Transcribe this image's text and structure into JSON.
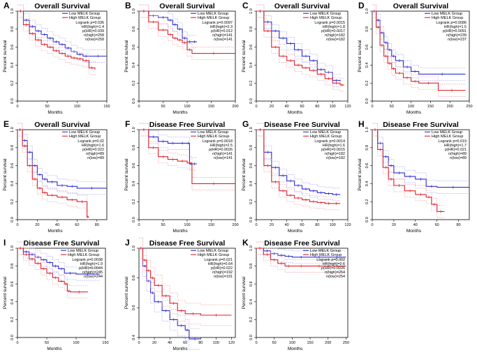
{
  "colors": {
    "low": "#2b2bd6",
    "high": "#e0202a",
    "low_ci": "#a8a8f0",
    "high_ci": "#f2a0a8",
    "frame": "#000000"
  },
  "chart_data": [
    {
      "letter": "A",
      "title": "Overall Survival",
      "type": "line",
      "xlabel": "Months",
      "ylabel": "Percent survival",
      "xlim": [
        0,
        150
      ],
      "xticks": [
        0,
        50,
        100,
        150
      ],
      "ylim": [
        0,
        1
      ],
      "yticks": [
        "0.0",
        "0.2",
        "0.4",
        "0.6",
        "0.8",
        "1.0"
      ],
      "legend": [
        "Low MELK Group",
        "High MELK Group"
      ],
      "stats": [
        "Logrank p=0.036",
        "HR(high)=1.4",
        "p(HR)=0.039",
        "n(high)=258",
        "n(low)=258"
      ],
      "series": [
        {
          "name": "Low MELK Group",
          "x": [
            0,
            10,
            20,
            30,
            40,
            50,
            60,
            70,
            80,
            90,
            100,
            110,
            120,
            150
          ],
          "y": [
            1.0,
            0.9,
            0.83,
            0.78,
            0.74,
            0.7,
            0.66,
            0.63,
            0.59,
            0.55,
            0.52,
            0.5,
            0.5,
            0.5
          ]
        },
        {
          "name": "High MELK Group",
          "x": [
            0,
            10,
            20,
            30,
            40,
            50,
            60,
            70,
            80,
            90,
            100,
            110,
            120,
            130
          ],
          "y": [
            1.0,
            0.85,
            0.75,
            0.68,
            0.63,
            0.6,
            0.56,
            0.53,
            0.5,
            0.48,
            0.47,
            0.45,
            0.37,
            0.35
          ]
        }
      ]
    },
    {
      "letter": "B",
      "title": "Overall Survival",
      "type": "line",
      "xlabel": "Months",
      "ylabel": "Percent survival",
      "xlim": [
        0,
        200
      ],
      "xticks": [
        0,
        50,
        100,
        150,
        200
      ],
      "ylim": [
        0,
        1
      ],
      "yticks": [
        "0.0",
        "0.2",
        "0.4",
        "0.6",
        "0.8",
        "1.0"
      ],
      "legend": [
        "Low MELK Group",
        "High MELK Group"
      ],
      "stats": [
        "Logrank p=0.0097",
        "HR(high)=2.3",
        "p(HR)=0.012",
        "n(high)=141",
        "n(low)=141"
      ],
      "series": [
        {
          "name": "Low MELK Group",
          "x": [
            0,
            20,
            40,
            60,
            70,
            80,
            90,
            100,
            110,
            120
          ],
          "y": [
            1.0,
            0.95,
            0.93,
            0.9,
            0.85,
            0.8,
            0.7,
            0.66,
            0.66,
            0.66
          ]
        },
        {
          "name": "High MELK Group",
          "x": [
            0,
            20,
            40,
            60,
            70,
            80,
            90,
            100,
            110,
            200
          ],
          "y": [
            1.0,
            0.88,
            0.79,
            0.74,
            0.7,
            0.68,
            0.65,
            0.57,
            0.53,
            0.53
          ]
        }
      ]
    },
    {
      "letter": "C",
      "title": "Overall Survival",
      "type": "line",
      "xlabel": "Months",
      "ylabel": "Percent survival",
      "xlim": [
        0,
        120
      ],
      "xticks": [
        0,
        20,
        40,
        60,
        80,
        100,
        120
      ],
      "ylim": [
        0,
        1
      ],
      "yticks": [
        "0.0",
        "0.2",
        "0.4",
        "0.6",
        "0.8",
        "1.0"
      ],
      "legend": [
        "Low MELK Group",
        "High MELK Group"
      ],
      "stats": [
        "Logrank p=0.0015",
        "HR(high)=1.8",
        "p(HR)=0.0017",
        "n(high)=182",
        "n(low)=182"
      ],
      "series": [
        {
          "name": "Low MELK Group",
          "x": [
            0,
            10,
            20,
            30,
            40,
            50,
            60,
            70,
            80,
            90,
            100,
            110
          ],
          "y": [
            1.0,
            0.88,
            0.78,
            0.7,
            0.64,
            0.57,
            0.5,
            0.45,
            0.35,
            0.32,
            0.23,
            0.22
          ]
        },
        {
          "name": "High MELK Group",
          "x": [
            0,
            10,
            20,
            30,
            40,
            50,
            60,
            70,
            80,
            90,
            100,
            110,
            115
          ],
          "y": [
            1.0,
            0.78,
            0.6,
            0.5,
            0.45,
            0.4,
            0.37,
            0.34,
            0.3,
            0.25,
            0.2,
            0.18,
            0.18
          ]
        }
      ]
    },
    {
      "letter": "D",
      "title": "Overall Survival",
      "type": "line",
      "xlabel": "Months",
      "ylabel": "Percent survival",
      "xlim": [
        0,
        250
      ],
      "xticks": [
        0,
        50,
        100,
        150,
        200,
        250
      ],
      "ylim": [
        0,
        1
      ],
      "yticks": [
        "0.0",
        "0.2",
        "0.4",
        "0.6",
        "0.8",
        "1.0"
      ],
      "legend": [
        "Low MELK Group",
        "High MELK Group"
      ],
      "stats": [
        "Logrank p=0.0086",
        "HR(high)=1.5",
        "p(HR)=0.0091",
        "n(high)=239",
        "n(low)=237"
      ],
      "series": [
        {
          "name": "Low MELK Group",
          "x": [
            0,
            10,
            20,
            30,
            40,
            50,
            60,
            80,
            100,
            120,
            240
          ],
          "y": [
            1.0,
            0.9,
            0.76,
            0.65,
            0.57,
            0.5,
            0.45,
            0.38,
            0.33,
            0.3,
            0.3
          ]
        },
        {
          "name": "High MELK Group",
          "x": [
            0,
            10,
            20,
            30,
            40,
            50,
            60,
            80,
            100,
            120,
            170,
            240
          ],
          "y": [
            1.0,
            0.82,
            0.62,
            0.5,
            0.42,
            0.36,
            0.31,
            0.26,
            0.22,
            0.2,
            0.12,
            0.12
          ]
        }
      ]
    },
    {
      "letter": "E",
      "title": "Overall Survival",
      "type": "line",
      "xlabel": "Months",
      "ylabel": "Percent survival",
      "xlim": [
        0,
        90
      ],
      "xticks": [
        0,
        20,
        40,
        60,
        80
      ],
      "ylim": [
        0,
        1
      ],
      "yticks": [
        "0.0",
        "0.2",
        "0.4",
        "0.6",
        "0.8",
        "1.0"
      ],
      "legend": [
        "Low MELK Group",
        "High MELK Group"
      ],
      "stats": [
        "Logrank p=0.02",
        "HR(high)=1.6",
        "p(HR)=0.022",
        "n(high)=89",
        "n(low)=89"
      ],
      "series": [
        {
          "name": "Low MELK Group",
          "x": [
            0,
            5,
            10,
            15,
            20,
            25,
            30,
            40,
            50,
            60,
            90
          ],
          "y": [
            1.0,
            0.88,
            0.75,
            0.6,
            0.5,
            0.45,
            0.42,
            0.38,
            0.37,
            0.35,
            0.35
          ]
        },
        {
          "name": "High MELK Group",
          "x": [
            0,
            5,
            10,
            15,
            20,
            25,
            30,
            40,
            50,
            60,
            70,
            72
          ],
          "y": [
            1.0,
            0.82,
            0.6,
            0.45,
            0.35,
            0.3,
            0.27,
            0.25,
            0.22,
            0.2,
            0.03,
            0.03
          ]
        }
      ]
    },
    {
      "letter": "F",
      "title": "Disease Free Survival",
      "type": "line",
      "xlabel": "Months",
      "ylabel": "Percent survival",
      "xlim": [
        0,
        200
      ],
      "xticks": [
        0,
        50,
        100,
        150,
        200
      ],
      "ylim": [
        0,
        1
      ],
      "yticks": [
        "0.0",
        "0.2",
        "0.4",
        "0.6",
        "0.8",
        "1.0"
      ],
      "legend": [
        "Low MELK Group",
        "High MELK Group"
      ],
      "stats": [
        "Logrank p=0.0018",
        "HR(high)=2.5",
        "p(HR)=0.0026",
        "n(high)=141",
        "n(low)=141"
      ],
      "series": [
        {
          "name": "Low MELK Group",
          "x": [
            0,
            20,
            40,
            60,
            80,
            100,
            105,
            110,
            120
          ],
          "y": [
            1.0,
            0.92,
            0.87,
            0.85,
            0.85,
            0.85,
            0.62,
            0.62,
            0.62
          ]
        },
        {
          "name": "High MELK Group",
          "x": [
            0,
            20,
            40,
            60,
            80,
            100,
            110,
            200
          ],
          "y": [
            1.0,
            0.8,
            0.7,
            0.67,
            0.65,
            0.63,
            0.4,
            0.4
          ]
        }
      ]
    },
    {
      "letter": "G",
      "title": "Disease Free Survival",
      "type": "line",
      "xlabel": "Months",
      "ylabel": "Percent survival",
      "xlim": [
        0,
        120
      ],
      "xticks": [
        0,
        20,
        40,
        60,
        80,
        100,
        120
      ],
      "ylim": [
        0,
        1
      ],
      "yticks": [
        "0.0",
        "0.2",
        "0.4",
        "0.6",
        "0.8",
        "1.0"
      ],
      "legend": [
        "Low MELK Group",
        "High MELK Group"
      ],
      "stats": [
        "Logrank p=0.0014",
        "HR(high)=1.6",
        "p(HR)=0.0015",
        "n(high)=182",
        "n(low)=182"
      ],
      "series": [
        {
          "name": "Low MELK Group",
          "x": [
            0,
            10,
            20,
            30,
            40,
            50,
            60,
            70,
            80,
            90,
            100,
            110
          ],
          "y": [
            1.0,
            0.75,
            0.58,
            0.49,
            0.43,
            0.38,
            0.34,
            0.32,
            0.3,
            0.29,
            0.28,
            0.28
          ]
        },
        {
          "name": "High MELK Group",
          "x": [
            0,
            10,
            20,
            30,
            40,
            50,
            60,
            70,
            80,
            90,
            100,
            110
          ],
          "y": [
            1.0,
            0.6,
            0.42,
            0.32,
            0.27,
            0.24,
            0.22,
            0.2,
            0.19,
            0.18,
            0.18,
            0.18
          ]
        }
      ]
    },
    {
      "letter": "H",
      "title": "Disease Free Survival",
      "type": "line",
      "xlabel": "Months",
      "ylabel": "Percent survival",
      "xlim": [
        0,
        90
      ],
      "xticks": [
        0,
        20,
        40,
        60,
        80
      ],
      "ylim": [
        0,
        1
      ],
      "yticks": [
        "0.0",
        "0.2",
        "0.4",
        "0.6",
        "0.8",
        "1.0"
      ],
      "legend": [
        "Low MELK Group",
        "High MELK Group"
      ],
      "stats": [
        "Logrank p=0.019",
        "HR(high)=1.7",
        "p(HR)=0.021",
        "n(high)=89",
        "n(low)=89"
      ],
      "series": [
        {
          "name": "Low MELK Group",
          "x": [
            0,
            5,
            10,
            15,
            20,
            30,
            40,
            50,
            60,
            90
          ],
          "y": [
            1.0,
            0.85,
            0.7,
            0.6,
            0.52,
            0.48,
            0.45,
            0.37,
            0.36,
            0.36
          ]
        },
        {
          "name": "High MELK Group",
          "x": [
            0,
            5,
            10,
            15,
            20,
            30,
            40,
            50,
            55,
            60,
            67
          ],
          "y": [
            1.0,
            0.78,
            0.58,
            0.45,
            0.38,
            0.32,
            0.28,
            0.25,
            0.17,
            0.09,
            0.09
          ]
        }
      ]
    },
    {
      "letter": "I",
      "title": "Disease Free Survival",
      "type": "line",
      "xlabel": "Months",
      "ylabel": "Percent survival",
      "xlim": [
        0,
        150
      ],
      "xticks": [
        0,
        50,
        100,
        150
      ],
      "ylim": [
        0,
        1
      ],
      "yticks": [
        "0.0",
        "0.2",
        "0.4",
        "0.6",
        "0.8",
        "1.0"
      ],
      "legend": [
        "Low MELK Group",
        "High MELK Group"
      ],
      "stats": [
        "Logrank p=0.0038",
        "HR(high)=1.9",
        "p(HR)=0.0044",
        "n(high)=245",
        "n(low)=244"
      ],
      "series": [
        {
          "name": "Low MELK Group",
          "x": [
            0,
            10,
            20,
            30,
            40,
            50,
            60,
            70,
            80,
            100,
            140
          ],
          "y": [
            1.0,
            0.96,
            0.93,
            0.9,
            0.87,
            0.84,
            0.8,
            0.77,
            0.72,
            0.71,
            0.71
          ]
        },
        {
          "name": "High MELK Group",
          "x": [
            0,
            10,
            20,
            30,
            40,
            50,
            60,
            70,
            80,
            85,
            90,
            120
          ],
          "y": [
            1.0,
            0.93,
            0.88,
            0.83,
            0.77,
            0.72,
            0.67,
            0.63,
            0.6,
            0.52,
            0.51,
            0.51
          ]
        }
      ]
    },
    {
      "letter": "J",
      "title": "Disease Free Survival",
      "type": "line",
      "xlabel": "Months",
      "ylabel": "Percent survival",
      "xlim": [
        0,
        125
      ],
      "xticks": [
        0,
        20,
        40,
        60,
        80,
        100,
        120
      ],
      "ylim": [
        0,
        1
      ],
      "yticks": [
        "0.4",
        "0.6",
        "0.8",
        "1.0"
      ],
      "legend": [
        "Low MELK Group",
        "High MELK Group"
      ],
      "stats": [
        "Logrank p=0.021",
        "HR(high)=0.64",
        "p(HR)=0.022",
        "n(high)=192",
        "n(low)=191"
      ],
      "series": [
        {
          "name": "Low MELK Group",
          "x": [
            0,
            5,
            10,
            15,
            20,
            30,
            40,
            50,
            60,
            65,
            80
          ],
          "y": [
            1.0,
            0.88,
            0.78,
            0.7,
            0.64,
            0.58,
            0.52,
            0.48,
            0.45,
            0.39,
            0.39
          ]
        },
        {
          "name": "High MELK Group",
          "x": [
            0,
            5,
            10,
            15,
            20,
            30,
            40,
            50,
            60,
            80,
            120
          ],
          "y": [
            1.0,
            0.92,
            0.85,
            0.8,
            0.75,
            0.68,
            0.63,
            0.58,
            0.56,
            0.55,
            0.55
          ]
        }
      ]
    },
    {
      "letter": "K",
      "title": "Disease Free Survival",
      "type": "line",
      "xlabel": "Months",
      "ylabel": "Percent survival",
      "xlim": [
        0,
        255
      ],
      "xticks": [
        0,
        50,
        100,
        150,
        200,
        250
      ],
      "ylim": [
        0,
        1
      ],
      "yticks": [
        "0.0",
        "0.2",
        "0.4",
        "0.6",
        "0.8",
        "1.0"
      ],
      "legend": [
        "Low MELK Group",
        "High MELK Group"
      ],
      "stats": [
        "Logrank p=0.002",
        "HR(high)=2.6",
        "p(HR)=0.0026",
        "n(high)=254",
        "n(low)=254"
      ],
      "series": [
        {
          "name": "Low MELK Group",
          "x": [
            0,
            20,
            40,
            60,
            80,
            100,
            150,
            200,
            250
          ],
          "y": [
            1.0,
            0.97,
            0.94,
            0.92,
            0.91,
            0.9,
            0.9,
            0.9,
            0.9
          ]
        },
        {
          "name": "High MELK Group",
          "x": [
            0,
            20,
            40,
            60,
            80,
            100,
            150,
            200,
            250
          ],
          "y": [
            1.0,
            0.93,
            0.87,
            0.83,
            0.8,
            0.8,
            0.8,
            0.8,
            0.8
          ]
        }
      ]
    }
  ]
}
